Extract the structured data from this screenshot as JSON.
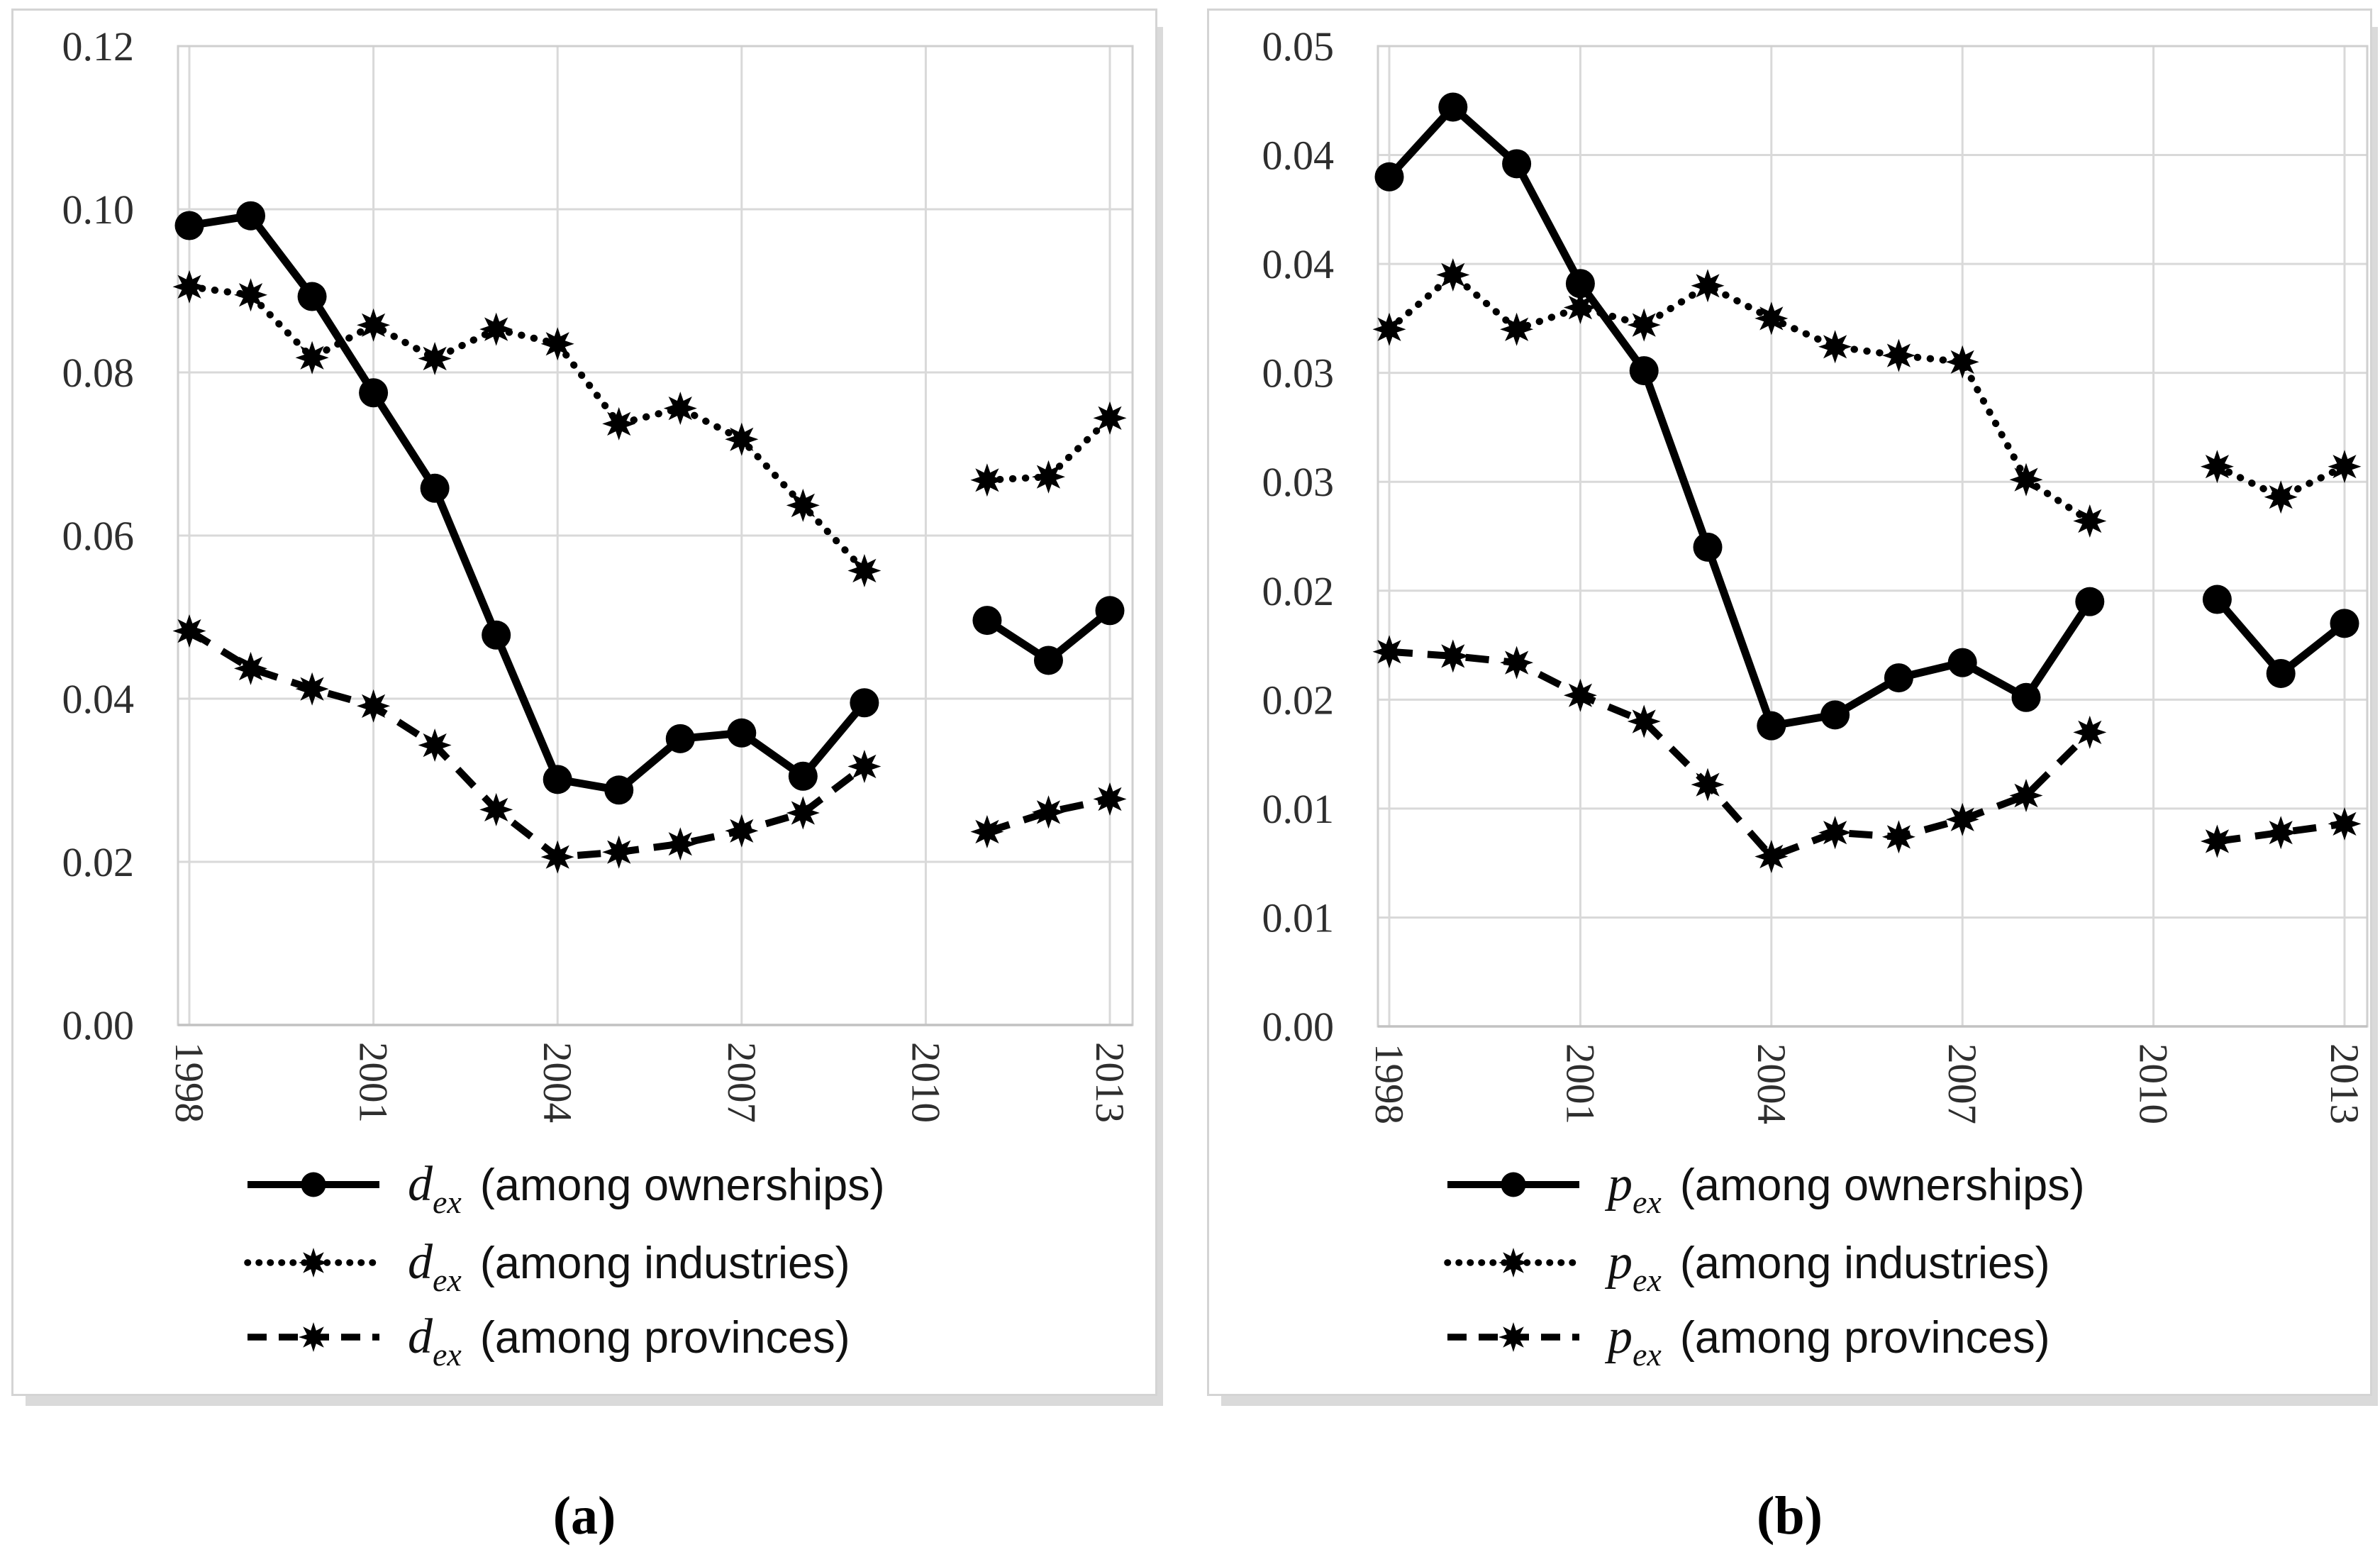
{
  "figure": {
    "background": "#ffffff",
    "panel_captions": {
      "a": "(a)",
      "b": "(b)"
    }
  },
  "style": {
    "series_color": "#000000",
    "gridline_color": "#d9d9d9",
    "plot_border_color": "#cfcfcf",
    "axis_line_color": "#c2c2c2",
    "tick_text_color": "#2e2e2e",
    "legend_text_color": "#111111",
    "panel_border_color": "#d4d4d4",
    "panel_shadow_color": "#dadada"
  },
  "chart_data": [
    {
      "type": "line",
      "panel": "a",
      "caption": "(a)",
      "title": "",
      "x": [
        1998,
        1999,
        2000,
        2001,
        2002,
        2003,
        2004,
        2005,
        2006,
        2007,
        2008,
        2009,
        2010,
        2011,
        2012,
        2013
      ],
      "x_tick_indices": [
        0,
        3,
        6,
        9,
        12,
        15
      ],
      "x_tick_labels": [
        "1998",
        "2001",
        "2004",
        "2007",
        "2010",
        "2013"
      ],
      "x_label_rotation_deg": 90,
      "ylim": [
        0,
        0.12
      ],
      "y_ticks": {
        "values": [
          0.12,
          0.1,
          0.08,
          0.06,
          0.04,
          0.02,
          0.0
        ],
        "labels": [
          "0.12",
          "0.10",
          "0.08",
          "0.06",
          "0.04",
          "0.02",
          "0.00"
        ]
      },
      "grid": true,
      "legend_position": "bottom",
      "series": [
        {
          "key": "ownerships",
          "symbol": "d",
          "subscript": "ex",
          "label": "(among ownerships)",
          "line_style": "solid",
          "marker": "circle",
          "values": [
            0.098,
            0.0992,
            0.0893,
            0.0775,
            0.0658,
            0.0478,
            0.0301,
            0.0288,
            0.0351,
            0.0358,
            0.0305,
            0.0395,
            null,
            0.0496,
            0.0447,
            0.0508
          ]
        },
        {
          "key": "industries",
          "symbol": "d",
          "subscript": "ex",
          "label": "(among industries)",
          "line_style": "dotted",
          "marker": "star",
          "values": [
            0.0905,
            0.0895,
            0.0818,
            0.0858,
            0.0817,
            0.0853,
            0.0835,
            0.0737,
            0.0756,
            0.0718,
            0.0637,
            0.0557,
            null,
            0.0668,
            0.0672,
            0.0744
          ]
        },
        {
          "key": "provinces",
          "symbol": "d",
          "subscript": "ex",
          "label": "(among provinces)",
          "line_style": "dashed",
          "marker": "star",
          "values": [
            0.0483,
            0.0437,
            0.0412,
            0.0391,
            0.0343,
            0.0264,
            0.0206,
            0.0212,
            0.0222,
            0.0238,
            0.026,
            0.0317,
            null,
            0.0237,
            0.0261,
            0.0277
          ]
        }
      ]
    },
    {
      "type": "line",
      "panel": "b",
      "caption": "(b)",
      "title": "",
      "x": [
        1998,
        1999,
        2000,
        2001,
        2002,
        2003,
        2004,
        2005,
        2006,
        2007,
        2008,
        2009,
        2010,
        2011,
        2012,
        2013
      ],
      "x_tick_indices": [
        0,
        3,
        6,
        9,
        12,
        15
      ],
      "x_tick_labels": [
        "1998",
        "2001",
        "2004",
        "2007",
        "2010",
        "2013"
      ],
      "x_label_rotation_deg": 90,
      "ylim": [
        0,
        0.045
      ],
      "y_ticks": {
        "values": [
          0.045,
          0.04,
          0.035,
          0.03,
          0.025,
          0.02,
          0.015,
          0.01,
          0.005,
          0.0
        ],
        "labels": [
          "0.05",
          "0.04",
          "0.04",
          "0.03",
          "0.03",
          "0.02",
          "0.02",
          "0.01",
          "0.01",
          "0.00"
        ]
      },
      "grid": true,
      "legend_position": "bottom",
      "series": [
        {
          "key": "ownerships",
          "symbol": "p",
          "subscript": "ex",
          "label": "(among ownerships)",
          "line_style": "solid",
          "marker": "circle",
          "values": [
            0.039,
            0.0422,
            0.0396,
            0.0341,
            0.0301,
            0.022,
            0.0138,
            0.0143,
            0.016,
            0.0167,
            0.0151,
            0.0195,
            null,
            0.0196,
            0.0162,
            0.0185
          ]
        },
        {
          "key": "industries",
          "symbol": "p",
          "subscript": "ex",
          "label": "(among industries)",
          "line_style": "dotted",
          "marker": "star",
          "values": [
            0.032,
            0.0345,
            0.032,
            0.033,
            0.0322,
            0.034,
            0.0325,
            0.0312,
            0.0308,
            0.0305,
            0.0251,
            0.0232,
            null,
            0.0257,
            0.0243,
            0.0257
          ]
        },
        {
          "key": "provinces",
          "symbol": "p",
          "subscript": "ex",
          "label": "(among provinces)",
          "line_style": "dashed",
          "marker": "star",
          "values": [
            0.0172,
            0.017,
            0.0167,
            0.0152,
            0.014,
            0.0111,
            0.0078,
            0.0089,
            0.0087,
            0.0095,
            0.0106,
            0.0135,
            null,
            0.0085,
            0.0089,
            0.0093
          ]
        }
      ]
    }
  ]
}
